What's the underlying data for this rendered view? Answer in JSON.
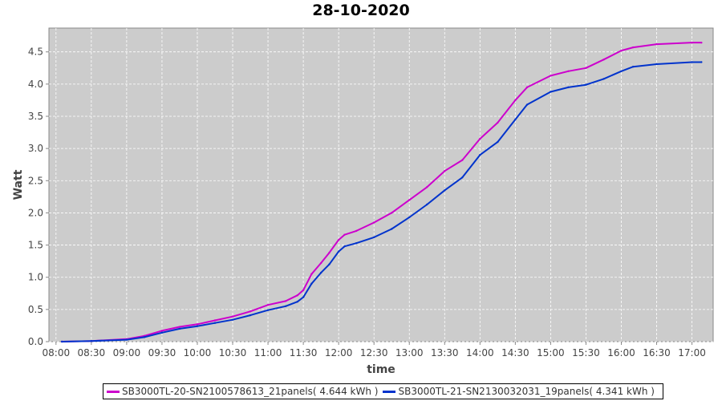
{
  "chart_data": {
    "type": "line",
    "title": "28-10-2020",
    "xlabel": "time",
    "ylabel": "Watt",
    "xlim": [
      "07:54",
      "17:18"
    ],
    "ylim": [
      0,
      4.87
    ],
    "x_ticks": [
      "08:00",
      "08:30",
      "09:00",
      "09:30",
      "10:00",
      "10:30",
      "11:00",
      "11:30",
      "12:00",
      "12:30",
      "13:00",
      "13:30",
      "14:00",
      "14:30",
      "15:00",
      "15:30",
      "16:00",
      "16:30",
      "17:00"
    ],
    "y_ticks": [
      "0.0",
      "0.5",
      "1.0",
      "1.5",
      "2.0",
      "2.5",
      "3.0",
      "3.5",
      "4.0",
      "4.5"
    ],
    "grid": true,
    "legend_position": "bottom",
    "background": "#cccccc",
    "x": [
      "08:05",
      "08:30",
      "09:00",
      "09:15",
      "09:30",
      "09:45",
      "10:00",
      "10:15",
      "10:30",
      "10:45",
      "11:00",
      "11:15",
      "11:25",
      "11:30",
      "11:37",
      "11:45",
      "11:52",
      "12:00",
      "12:05",
      "12:15",
      "12:30",
      "12:45",
      "13:00",
      "13:15",
      "13:30",
      "13:45",
      "14:00",
      "14:15",
      "14:30",
      "14:40",
      "15:00",
      "15:15",
      "15:30",
      "15:45",
      "16:00",
      "16:10",
      "16:30",
      "17:00",
      "17:08"
    ],
    "series": [
      {
        "name": "SB3000TL-20-SN2100578613_21panels( 4.644 kWh )",
        "color": "#cc00cc",
        "values": [
          0.0,
          0.01,
          0.04,
          0.09,
          0.17,
          0.23,
          0.27,
          0.33,
          0.39,
          0.47,
          0.57,
          0.63,
          0.72,
          0.8,
          1.05,
          1.22,
          1.38,
          1.58,
          1.66,
          1.72,
          1.85,
          2.0,
          2.2,
          2.4,
          2.65,
          2.82,
          3.15,
          3.4,
          3.75,
          3.95,
          4.13,
          4.2,
          4.25,
          4.38,
          4.52,
          4.57,
          4.62,
          4.644,
          4.644
        ]
      },
      {
        "name": "SB3000TL-21-SN2130032031_19panels( 4.341 kWh )",
        "color": "#0033cc",
        "values": [
          0.0,
          0.01,
          0.03,
          0.07,
          0.14,
          0.2,
          0.24,
          0.29,
          0.34,
          0.41,
          0.49,
          0.55,
          0.62,
          0.69,
          0.9,
          1.07,
          1.2,
          1.4,
          1.48,
          1.53,
          1.62,
          1.75,
          1.93,
          2.13,
          2.35,
          2.55,
          2.9,
          3.1,
          3.45,
          3.68,
          3.88,
          3.95,
          3.99,
          4.08,
          4.2,
          4.27,
          4.31,
          4.341,
          4.341
        ]
      }
    ]
  }
}
